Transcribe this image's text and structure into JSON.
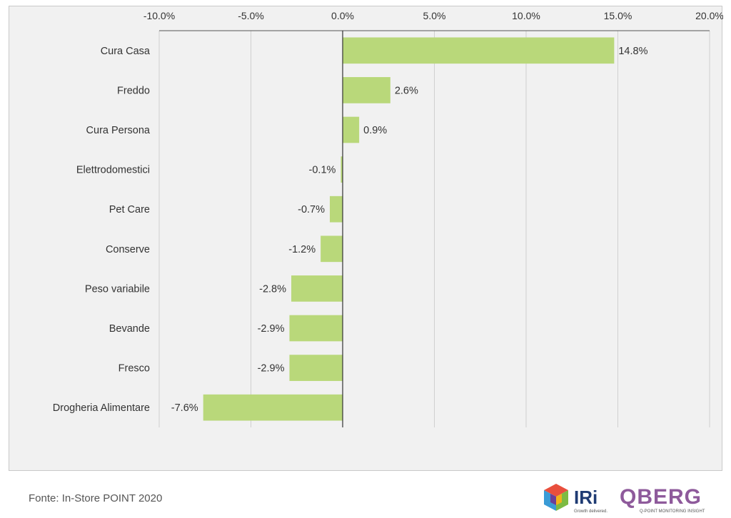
{
  "chart_data": {
    "type": "bar",
    "orientation": "horizontal",
    "categories": [
      "Cura Casa",
      "Freddo",
      "Cura Persona",
      "Elettrodomestici",
      "Pet Care",
      "Conserve",
      "Peso variabile",
      "Bevande",
      "Fresco",
      "Drogheria Alimentare"
    ],
    "values": [
      14.8,
      2.6,
      0.9,
      -0.1,
      -0.7,
      -1.2,
      -2.8,
      -2.9,
      -2.9,
      -7.6
    ],
    "value_labels": [
      "14.8%",
      "2.6%",
      "0.9%",
      "-0.1%",
      "-0.7%",
      "-1.2%",
      "-2.8%",
      "-2.9%",
      "-2.9%",
      "-7.6%"
    ],
    "xlim": [
      -10,
      20
    ],
    "x_ticks": [
      -10,
      -5,
      0,
      5,
      10,
      15,
      20
    ],
    "x_tick_labels": [
      "-10.0%",
      "-5.0%",
      "0.0%",
      "5.0%",
      "10.0%",
      "15.0%",
      "20.0%"
    ],
    "axis_position": "top",
    "grid": true,
    "legend": "none",
    "bar_color": "#b9d87a",
    "grid_color": "#d0d0d0"
  },
  "footer": {
    "source": "Fonte: In-Store POINT 2020"
  },
  "logos": {
    "iri": {
      "name": "IRi",
      "tagline": "Growth delivered.",
      "icon": "iri-cube-icon"
    },
    "qberg": {
      "name": "QBERG",
      "tagline": "Q-POINT MONITORING INSIGHT",
      "icon": "qberg-wordmark"
    }
  }
}
